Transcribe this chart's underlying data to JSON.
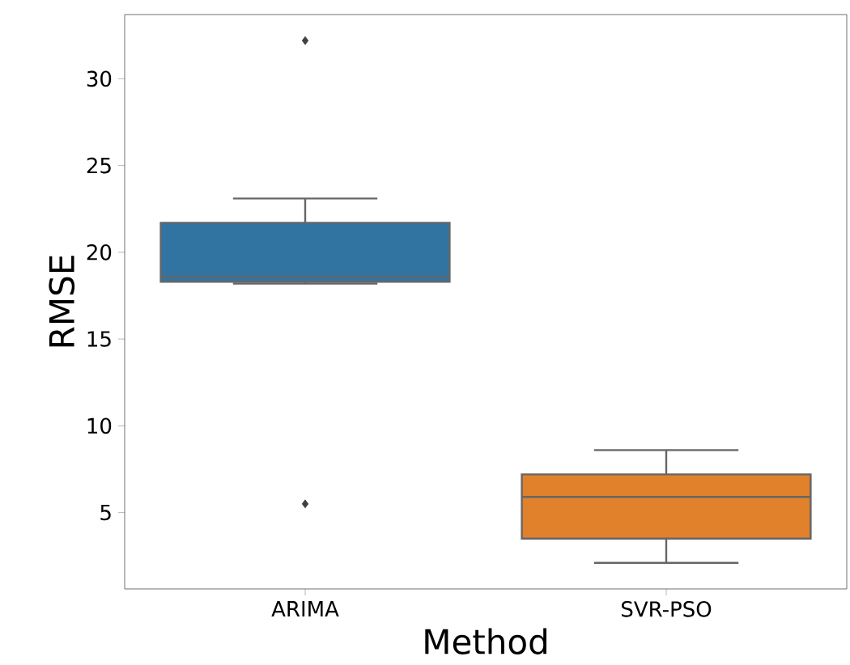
{
  "chart_data": {
    "type": "box",
    "xlabel": "Method",
    "ylabel": "RMSE",
    "categories": [
      "ARIMA",
      "SVR-PSO"
    ],
    "colors": [
      "#3274a1",
      "#e1812c"
    ],
    "boxes": [
      {
        "low": 18.2,
        "q1": 18.3,
        "median": 18.6,
        "q3": 21.7,
        "high": 23.1,
        "outliers": [
          32.2,
          5.5
        ]
      },
      {
        "low": 2.1,
        "q1": 3.5,
        "median": 5.9,
        "q3": 7.2,
        "high": 8.6
      }
    ],
    "marker": "diamond",
    "ylim": [
      0.6,
      33.7
    ],
    "yticks": [
      5,
      10,
      15,
      20,
      25,
      30
    ],
    "grid": false
  }
}
